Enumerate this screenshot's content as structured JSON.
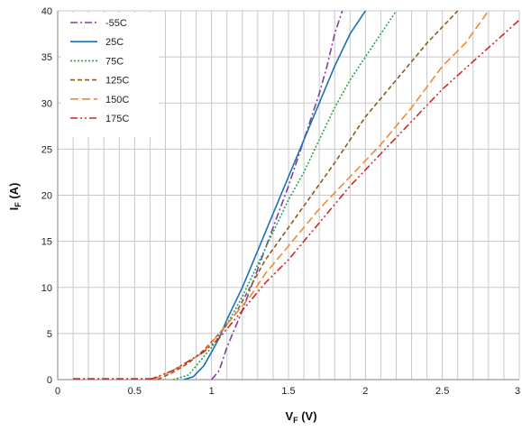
{
  "chart_data": {
    "type": "line",
    "xlabel": "V",
    "xlabel_sub": "F",
    "xlabel_unit": " (V)",
    "ylabel": "I",
    "ylabel_sub": "F",
    "ylabel_unit": " (A)",
    "xlim": [
      0,
      3
    ],
    "ylim": [
      0,
      40
    ],
    "x_ticks": [
      0,
      0.5,
      1,
      1.5,
      2,
      2.5,
      3
    ],
    "x_tick_labels": [
      "0",
      "0.5",
      "1",
      "1.5",
      "2",
      "2.5",
      "3"
    ],
    "y_ticks": [
      0,
      5,
      10,
      15,
      20,
      25,
      30,
      35,
      40
    ],
    "y_tick_labels": [
      "0",
      "5",
      "10",
      "15",
      "20",
      "25",
      "30",
      "35",
      "40"
    ],
    "grid": true,
    "legend_position": "top-left",
    "series": [
      {
        "name": "-55C",
        "color": "#7e3fa0",
        "dash": "dashdot",
        "points": [
          [
            1.0,
            0
          ],
          [
            1.05,
            1
          ],
          [
            1.1,
            3.5
          ],
          [
            1.2,
            7.5
          ],
          [
            1.3,
            12
          ],
          [
            1.4,
            16.5
          ],
          [
            1.5,
            21
          ],
          [
            1.6,
            26
          ],
          [
            1.7,
            31
          ],
          [
            1.75,
            34
          ],
          [
            1.8,
            37.5
          ],
          [
            1.85,
            40
          ]
        ]
      },
      {
        "name": "25C",
        "color": "#1f6fb8",
        "dash": "solid",
        "points": [
          [
            0.82,
            0
          ],
          [
            0.88,
            0.3
          ],
          [
            0.95,
            1.5
          ],
          [
            1.0,
            3
          ],
          [
            1.05,
            4.5
          ],
          [
            1.1,
            6.5
          ],
          [
            1.2,
            10
          ],
          [
            1.3,
            14
          ],
          [
            1.4,
            18
          ],
          [
            1.5,
            22
          ],
          [
            1.6,
            26
          ],
          [
            1.7,
            30
          ],
          [
            1.8,
            34
          ],
          [
            1.9,
            37.5
          ],
          [
            2.0,
            40
          ]
        ]
      },
      {
        "name": "75C",
        "color": "#22a84a",
        "dash": "dotted",
        "points": [
          [
            0.75,
            0
          ],
          [
            0.85,
            0.5
          ],
          [
            0.9,
            1.5
          ],
          [
            0.95,
            2.5
          ],
          [
            1.0,
            3.5
          ],
          [
            1.1,
            6
          ],
          [
            1.2,
            9
          ],
          [
            1.3,
            12.5
          ],
          [
            1.4,
            16
          ],
          [
            1.5,
            19.5
          ],
          [
            1.6,
            22.5
          ],
          [
            1.7,
            26
          ],
          [
            1.8,
            29.5
          ],
          [
            1.9,
            32.5
          ],
          [
            2.0,
            35
          ],
          [
            2.1,
            37.5
          ],
          [
            2.2,
            40
          ]
        ]
      },
      {
        "name": "125C",
        "color": "#8b5a1f",
        "dash": "dashed",
        "points": [
          [
            0.65,
            0
          ],
          [
            0.75,
            0.8
          ],
          [
            0.85,
            1.8
          ],
          [
            0.95,
            3.2
          ],
          [
            1.05,
            5
          ],
          [
            1.15,
            7
          ],
          [
            1.25,
            10
          ],
          [
            1.35,
            13
          ],
          [
            1.5,
            16.5
          ],
          [
            1.65,
            20
          ],
          [
            1.8,
            23.5
          ],
          [
            2.0,
            28.5
          ],
          [
            2.2,
            32.5
          ],
          [
            2.4,
            36.5
          ],
          [
            2.6,
            40
          ]
        ]
      },
      {
        "name": "150C",
        "color": "#f08a32",
        "dash": "longdash",
        "points": [
          [
            0.62,
            0
          ],
          [
            0.75,
            1
          ],
          [
            0.85,
            2
          ],
          [
            0.95,
            3
          ],
          [
            1.05,
            5
          ],
          [
            1.15,
            7
          ],
          [
            1.25,
            9
          ],
          [
            1.35,
            11.5
          ],
          [
            1.5,
            14.5
          ],
          [
            1.7,
            18.5
          ],
          [
            1.9,
            22
          ],
          [
            2.1,
            25.5
          ],
          [
            2.3,
            29.5
          ],
          [
            2.5,
            34
          ],
          [
            2.65,
            36.5
          ],
          [
            2.8,
            40
          ]
        ]
      },
      {
        "name": "175C",
        "color": "#cc2a2a",
        "dash": "dashdotdot",
        "points": [
          [
            0.6,
            0
          ],
          [
            0.75,
            1
          ],
          [
            0.85,
            2
          ],
          [
            0.95,
            3
          ],
          [
            1.05,
            4.5
          ],
          [
            1.15,
            6.5
          ],
          [
            1.25,
            8.5
          ],
          [
            1.35,
            10.5
          ],
          [
            1.5,
            13
          ],
          [
            1.7,
            17
          ],
          [
            1.9,
            21
          ],
          [
            2.1,
            24.5
          ],
          [
            2.3,
            28
          ],
          [
            2.5,
            31.5
          ],
          [
            2.7,
            34.5
          ],
          [
            2.9,
            37.5
          ],
          [
            3.0,
            39
          ]
        ]
      }
    ],
    "baseline": {
      "color": "#cc2a2a",
      "from": 0.1,
      "to": 0.62
    }
  }
}
